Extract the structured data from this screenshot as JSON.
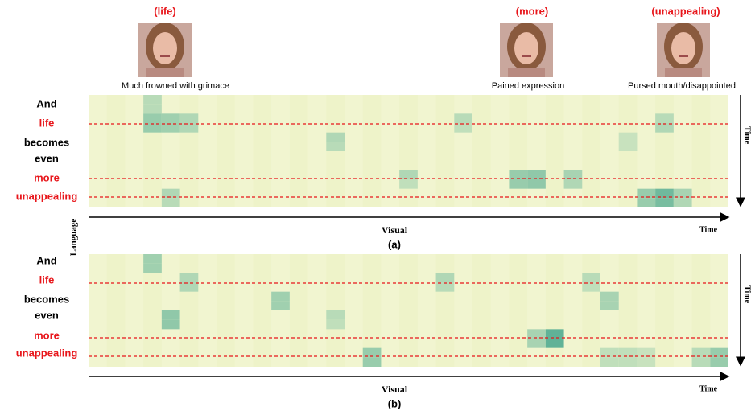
{
  "figure": {
    "frames": [
      {
        "tag": "(life)",
        "caption": "Much frowned with grimace"
      },
      {
        "tag": "(more)",
        "caption": "Pained expression"
      },
      {
        "tag": "(unappealing)",
        "caption": "Pursed mouth/disappointed"
      }
    ],
    "y_axis_label": "Language",
    "panels": [
      {
        "words": [
          {
            "text": "And",
            "highlighted": false
          },
          {
            "text": "life",
            "highlighted": true
          },
          {
            "text": "becomes",
            "highlighted": false
          },
          {
            "text": "even",
            "highlighted": false
          },
          {
            "text": "more",
            "highlighted": true
          },
          {
            "text": "unappealing",
            "highlighted": true
          }
        ],
        "x_axis_label": "Visual",
        "x_end_label": "Time",
        "y_end_label": "Time",
        "caption": "(a)",
        "cells": [
          {
            "row": 0,
            "col": 3,
            "weight": 0.35
          },
          {
            "row": 1,
            "col": 3,
            "weight": 0.35
          },
          {
            "row": 2,
            "col": 3,
            "weight": 0.55
          },
          {
            "row": 3,
            "col": 3,
            "weight": 0.55
          },
          {
            "row": 2,
            "col": 4,
            "weight": 0.5
          },
          {
            "row": 3,
            "col": 4,
            "weight": 0.5
          },
          {
            "row": 2,
            "col": 5,
            "weight": 0.4
          },
          {
            "row": 3,
            "col": 5,
            "weight": 0.4
          },
          {
            "row": 2,
            "col": 20,
            "weight": 0.35
          },
          {
            "row": 3,
            "col": 20,
            "weight": 0.3
          },
          {
            "row": 2,
            "col": 31,
            "weight": 0.35
          },
          {
            "row": 3,
            "col": 31,
            "weight": 0.4
          },
          {
            "row": 4,
            "col": 13,
            "weight": 0.4
          },
          {
            "row": 5,
            "col": 13,
            "weight": 0.35
          },
          {
            "row": 4,
            "col": 29,
            "weight": 0.25
          },
          {
            "row": 5,
            "col": 29,
            "weight": 0.25
          },
          {
            "row": 8,
            "col": 17,
            "weight": 0.4
          },
          {
            "row": 9,
            "col": 17,
            "weight": 0.3
          },
          {
            "row": 8,
            "col": 23,
            "weight": 0.55
          },
          {
            "row": 9,
            "col": 23,
            "weight": 0.55
          },
          {
            "row": 8,
            "col": 24,
            "weight": 0.6
          },
          {
            "row": 9,
            "col": 24,
            "weight": 0.6
          },
          {
            "row": 8,
            "col": 26,
            "weight": 0.45
          },
          {
            "row": 9,
            "col": 26,
            "weight": 0.4
          },
          {
            "row": 10,
            "col": 4,
            "weight": 0.4
          },
          {
            "row": 11,
            "col": 4,
            "weight": 0.35
          },
          {
            "row": 10,
            "col": 30,
            "weight": 0.55
          },
          {
            "row": 11,
            "col": 30,
            "weight": 0.55
          },
          {
            "row": 10,
            "col": 31,
            "weight": 0.8
          },
          {
            "row": 11,
            "col": 31,
            "weight": 0.75
          },
          {
            "row": 10,
            "col": 32,
            "weight": 0.45
          },
          {
            "row": 11,
            "col": 32,
            "weight": 0.4
          }
        ]
      },
      {
        "words": [
          {
            "text": "And",
            "highlighted": false
          },
          {
            "text": "life",
            "highlighted": true
          },
          {
            "text": "becomes",
            "highlighted": false
          },
          {
            "text": "even",
            "highlighted": false
          },
          {
            "text": "more",
            "highlighted": true
          },
          {
            "text": "unappealing",
            "highlighted": true
          }
        ],
        "x_axis_label": "Visual",
        "x_end_label": "Time",
        "y_end_label": "Time",
        "caption": "(b)",
        "cells": [
          {
            "row": 0,
            "col": 3,
            "weight": 0.5
          },
          {
            "row": 1,
            "col": 3,
            "weight": 0.5
          },
          {
            "row": 2,
            "col": 5,
            "weight": 0.4
          },
          {
            "row": 3,
            "col": 5,
            "weight": 0.4
          },
          {
            "row": 2,
            "col": 19,
            "weight": 0.4
          },
          {
            "row": 3,
            "col": 19,
            "weight": 0.35
          },
          {
            "row": 2,
            "col": 27,
            "weight": 0.35
          },
          {
            "row": 3,
            "col": 27,
            "weight": 0.3
          },
          {
            "row": 4,
            "col": 10,
            "weight": 0.5
          },
          {
            "row": 5,
            "col": 10,
            "weight": 0.5
          },
          {
            "row": 4,
            "col": 28,
            "weight": 0.45
          },
          {
            "row": 5,
            "col": 28,
            "weight": 0.45
          },
          {
            "row": 6,
            "col": 4,
            "weight": 0.6
          },
          {
            "row": 7,
            "col": 4,
            "weight": 0.6
          },
          {
            "row": 6,
            "col": 13,
            "weight": 0.35
          },
          {
            "row": 7,
            "col": 13,
            "weight": 0.3
          },
          {
            "row": 8,
            "col": 24,
            "weight": 0.45
          },
          {
            "row": 9,
            "col": 24,
            "weight": 0.45
          },
          {
            "row": 8,
            "col": 25,
            "weight": 0.9
          },
          {
            "row": 9,
            "col": 25,
            "weight": 0.9
          },
          {
            "row": 10,
            "col": 15,
            "weight": 0.55
          },
          {
            "row": 11,
            "col": 15,
            "weight": 0.55
          },
          {
            "row": 10,
            "col": 28,
            "weight": 0.3
          },
          {
            "row": 11,
            "col": 28,
            "weight": 0.3
          },
          {
            "row": 10,
            "col": 29,
            "weight": 0.3
          },
          {
            "row": 11,
            "col": 29,
            "weight": 0.3
          },
          {
            "row": 10,
            "col": 30,
            "weight": 0.25
          },
          {
            "row": 11,
            "col": 30,
            "weight": 0.25
          },
          {
            "row": 10,
            "col": 33,
            "weight": 0.35
          },
          {
            "row": 11,
            "col": 33,
            "weight": 0.35
          },
          {
            "row": 10,
            "col": 34,
            "weight": 0.55
          },
          {
            "row": 11,
            "col": 34,
            "weight": 0.55
          }
        ]
      }
    ]
  }
}
